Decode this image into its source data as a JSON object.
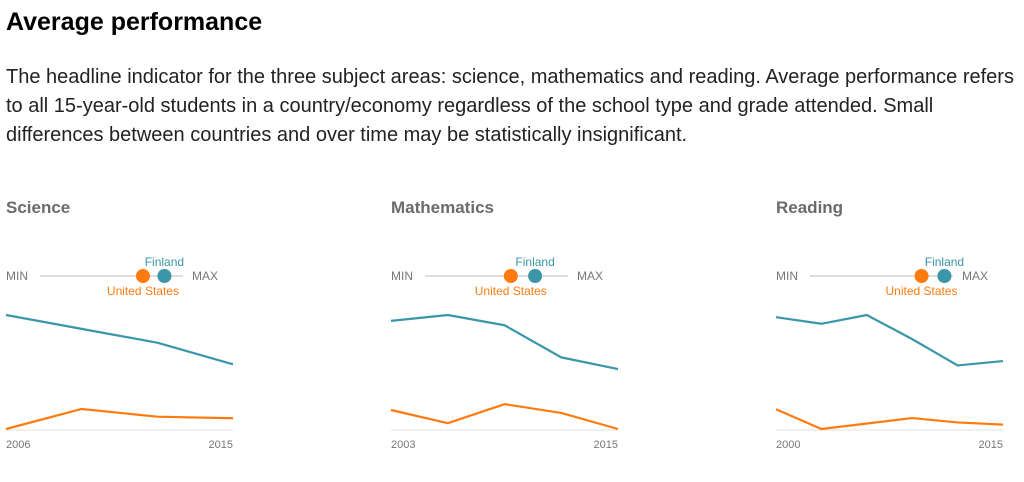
{
  "header": {
    "title": "Average performance",
    "description": "The headline indicator for the three subject areas: science, mathematics and reading. Average performance refers to all 15-year-old students in a country/economy regardless of the school type and grade attended. Small differences between countries and over time may be statistically insignificant."
  },
  "colors": {
    "finland": "#3a96a8",
    "united_states": "#ff7b0f",
    "track": "#dddddd"
  },
  "slider_labels": {
    "min": "MIN",
    "max": "MAX"
  },
  "chart_data": [
    {
      "type": "line",
      "title": "Science",
      "x": [
        2006,
        2009,
        2012,
        2015
      ],
      "tick_labels": [
        "2006",
        "2015"
      ],
      "series": [
        {
          "name": "Finland",
          "values": [
            563,
            554,
            545,
            531
          ],
          "slider_position": 0.87
        },
        {
          "name": "United States",
          "values": [
            489,
            502,
            497,
            496
          ],
          "slider_position": 0.72
        }
      ]
    },
    {
      "type": "line",
      "title": "Mathematics",
      "x": [
        2003,
        2006,
        2009,
        2012,
        2015
      ],
      "tick_labels": [
        "2003",
        "2015"
      ],
      "series": [
        {
          "name": "Finland",
          "values": [
            544,
            548,
            541,
            519,
            511
          ],
          "slider_position": 0.77
        },
        {
          "name": "United States",
          "values": [
            483,
            474,
            487,
            481,
            470
          ],
          "slider_position": 0.6
        }
      ]
    },
    {
      "type": "line",
      "title": "Reading",
      "x": [
        2000,
        2003,
        2006,
        2009,
        2012,
        2015
      ],
      "tick_labels": [
        "2000",
        "2015"
      ],
      "series": [
        {
          "name": "Finland",
          "values": [
            546,
            543,
            547,
            536,
            524,
            526
          ],
          "slider_position": 0.94
        },
        {
          "name": "United States",
          "values": [
            504,
            495,
            null,
            500,
            498,
            497
          ],
          "slider_position": 0.78
        }
      ]
    }
  ]
}
